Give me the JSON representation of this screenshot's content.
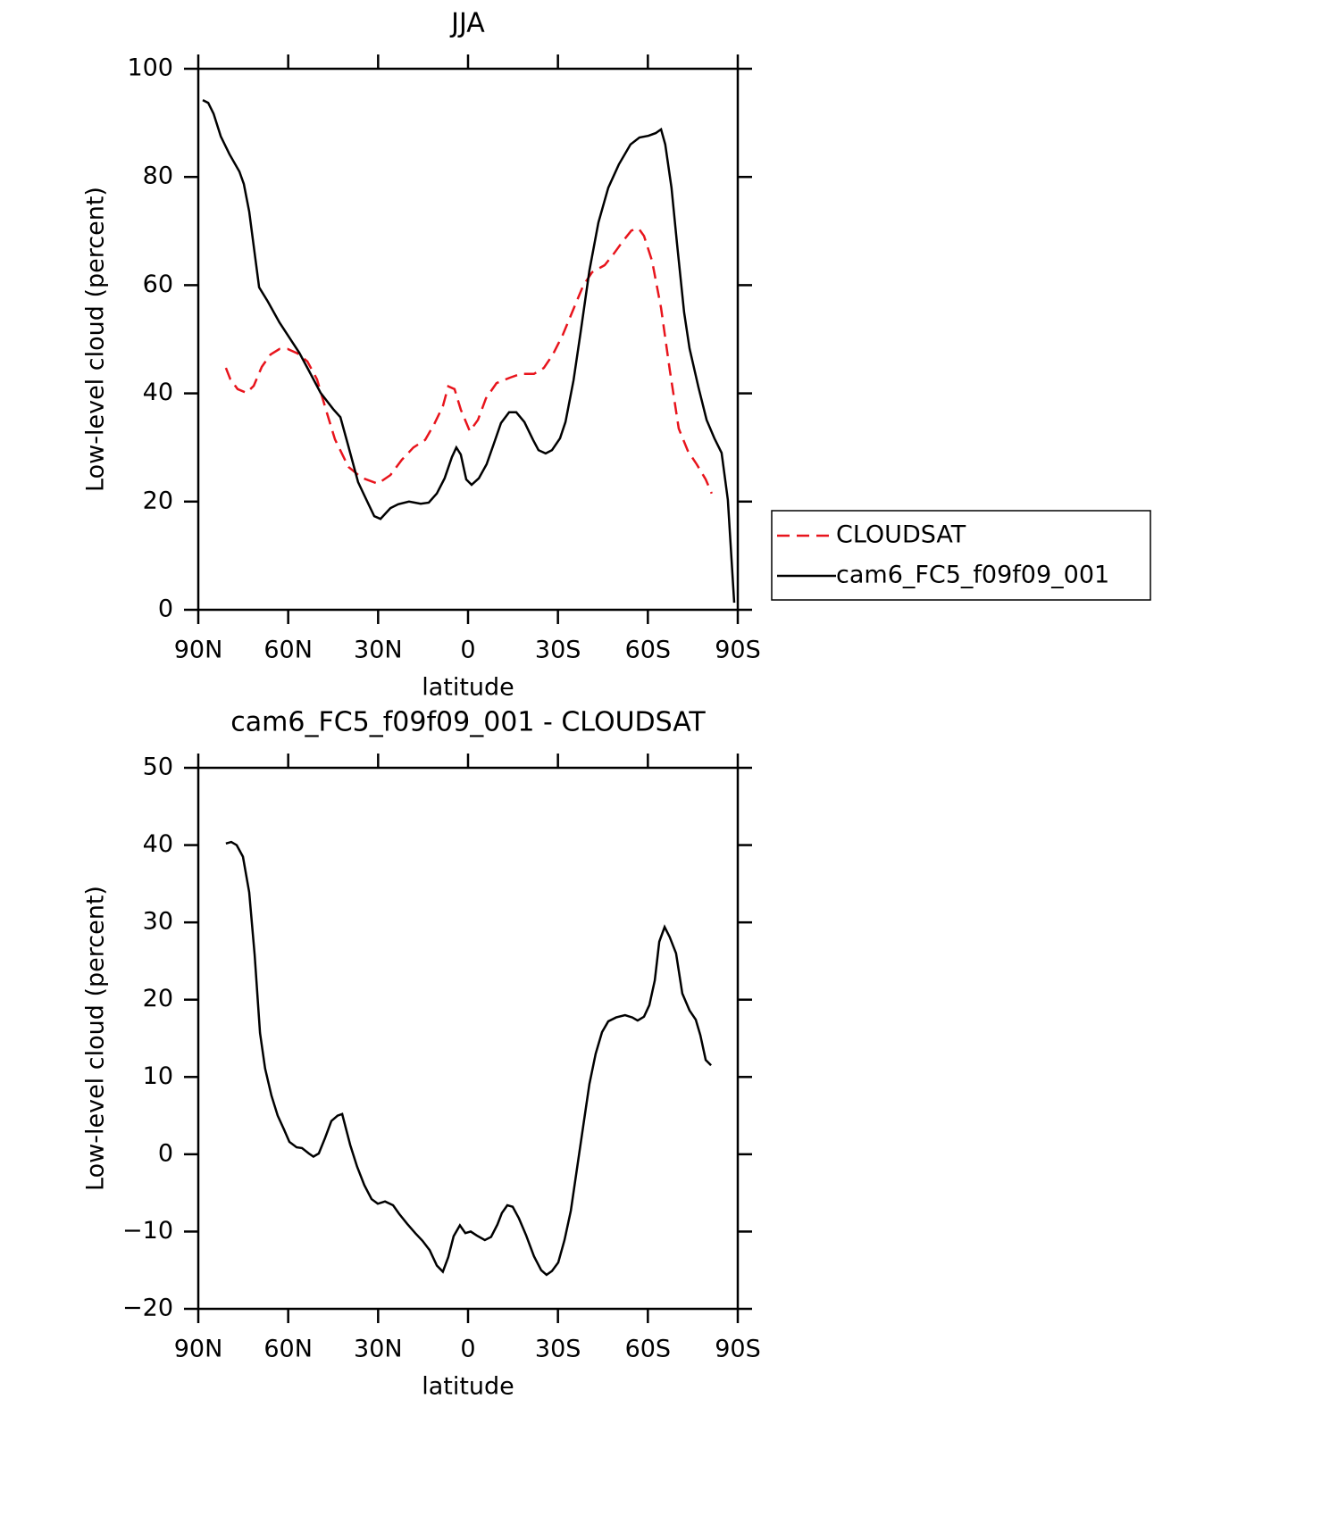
{
  "chart_data": [
    {
      "type": "line",
      "title": "JJA",
      "xlabel": "latitude",
      "ylabel": "Low-level cloud (percent)",
      "xlim": [
        90,
        -90
      ],
      "xticks": [
        {
          "value": 90,
          "label": "90N"
        },
        {
          "value": 60,
          "label": "60N"
        },
        {
          "value": 30,
          "label": "30N"
        },
        {
          "value": 0,
          "label": "0"
        },
        {
          "value": -30,
          "label": "30S"
        },
        {
          "value": -60,
          "label": "60S"
        },
        {
          "value": -90,
          "label": "90S"
        }
      ],
      "ylim": [
        0,
        100
      ],
      "yticks": [
        0,
        20,
        40,
        60,
        80,
        100
      ],
      "legend": "right",
      "series": [
        {
          "name": "CLOUDSAT",
          "color": "#e8141c",
          "line_style": "dashed",
          "x": [
            80.8,
            79.3,
            76.9,
            73.9,
            71.5,
            68.8,
            65.9,
            62.9,
            60.2,
            56.9,
            53.6,
            50.4,
            47.4,
            44.4,
            39.9,
            35.5,
            30.1,
            25.9,
            22.1,
            18.2,
            14.3,
            11.3,
            8.4,
            6.6,
            4.5,
            2.4,
            -0.6,
            -3.3,
            -6,
            -9.5,
            -14,
            -17.6,
            -22,
            -25.3,
            -28.3,
            -31.6,
            -34.6,
            -38.4,
            -41.4,
            -45.6,
            -48.6,
            -51.5,
            -54.5,
            -56.9,
            -58.7,
            -61.4,
            -64.4,
            -67.3,
            -70.3,
            -73.3,
            -76.3,
            -79.3,
            -81.3
          ],
          "values": [
            44.7,
            42.6,
            40.8,
            40.1,
            41.4,
            44.9,
            47.2,
            48.2,
            48.2,
            47.4,
            45.9,
            42.6,
            37,
            31.5,
            26.4,
            24.4,
            23.3,
            24.9,
            27.7,
            30,
            31.4,
            34.3,
            37.6,
            41.3,
            40.8,
            37,
            33,
            35.1,
            39.1,
            41.9,
            42.9,
            43.6,
            43.6,
            44.7,
            47.2,
            50.8,
            54.8,
            59.9,
            62.4,
            63.7,
            65.8,
            68,
            70.1,
            70.5,
            69.1,
            64.5,
            55.8,
            44.4,
            33.5,
            29.4,
            26.9,
            24.1,
            21.5
          ]
        },
        {
          "name": "cam6_FC5_f09f09_001",
          "color": "#000000",
          "line_style": "solid",
          "x": [
            88.5,
            86.7,
            84.9,
            82.5,
            79.6,
            76.3,
            74.8,
            73,
            69.7,
            66.8,
            62.9,
            59.6,
            56.3,
            53.1,
            49.2,
            45,
            42.6,
            39.9,
            36.7,
            34.3,
            31.3,
            29.2,
            25.9,
            23.3,
            19.7,
            15.8,
            13.1,
            10.4,
            7.8,
            5.4,
            3.9,
            2.4,
            0.6,
            -1.2,
            -3.6,
            -6.2,
            -8.6,
            -11,
            -13.7,
            -16.1,
            -18.8,
            -21.7,
            -23.5,
            -25.9,
            -28,
            -30.7,
            -32.5,
            -35.2,
            -37.5,
            -40.5,
            -43.5,
            -46.8,
            -50.3,
            -54.2,
            -57.2,
            -60.2,
            -62.6,
            -64.4,
            -65.8,
            -67.9,
            -69.7,
            -72.1,
            -73.9,
            -76.9,
            -79.6,
            -82.2,
            -84.6,
            -86.7,
            -88.8
          ],
          "values": [
            94.2,
            93.7,
            91.7,
            87.5,
            84.2,
            81,
            78.7,
            73.6,
            59.6,
            57,
            53.1,
            50.3,
            47.5,
            44.2,
            40.1,
            37.1,
            35.6,
            30.2,
            23.6,
            20.8,
            17.3,
            16.8,
            18.8,
            19.5,
            20,
            19.6,
            19.8,
            21.5,
            24.3,
            28.2,
            30,
            28.7,
            24.1,
            23.1,
            24.3,
            26.9,
            30.7,
            34.5,
            36.5,
            36.5,
            34.7,
            31.4,
            29.5,
            28.9,
            29.5,
            31.7,
            34.7,
            42.4,
            51,
            62.7,
            71.6,
            78,
            82.3,
            86,
            87.3,
            87.6,
            88.1,
            88.8,
            86,
            78,
            67.8,
            55,
            48.3,
            41.1,
            35.1,
            31.7,
            29,
            20.3,
            1.3
          ]
        }
      ]
    },
    {
      "type": "line",
      "title": "cam6_FC5_f09f09_001 - CLOUDSAT",
      "xlabel": "latitude",
      "ylabel": "Low-level cloud (percent)",
      "xlim": [
        90,
        -90
      ],
      "xticks": [
        {
          "value": 90,
          "label": "90N"
        },
        {
          "value": 60,
          "label": "60N"
        },
        {
          "value": 30,
          "label": "30N"
        },
        {
          "value": 0,
          "label": "0"
        },
        {
          "value": -30,
          "label": "30S"
        },
        {
          "value": -60,
          "label": "60S"
        },
        {
          "value": -90,
          "label": "90S"
        }
      ],
      "ylim": [
        -20,
        50
      ],
      "yticks": [
        {
          "value": -20,
          "label": "−20"
        },
        {
          "value": -10,
          "label": "−10"
        },
        0,
        10,
        20,
        30,
        40,
        50
      ],
      "series": [
        {
          "color": "#000000",
          "line_style": "solid",
          "x": [
            80.8,
            79,
            77.2,
            75.1,
            73,
            71.2,
            69.4,
            67.7,
            65.6,
            63.5,
            61.4,
            59.6,
            57.2,
            55.4,
            53.1,
            51.6,
            49.8,
            47.7,
            45.6,
            43.5,
            42,
            39.3,
            37,
            34.6,
            32.2,
            30.1,
            27.7,
            25,
            23,
            20.3,
            17.6,
            15.2,
            12.8,
            10.4,
            8.4,
            6.6,
            4.8,
            2.7,
            0.9,
            -0.9,
            -2.9,
            -5.6,
            -7.7,
            -9.8,
            -11.3,
            -13.1,
            -14.9,
            -17,
            -19.4,
            -22,
            -24.4,
            -26.2,
            -28,
            -30.1,
            -32.2,
            -34.3,
            -36.3,
            -38.4,
            -40.5,
            -42.6,
            -44.7,
            -46.8,
            -49.4,
            -52.4,
            -54.8,
            -56.6,
            -58.7,
            -60.5,
            -62.3,
            -63.8,
            -65.6,
            -67.3,
            -69.4,
            -71.5,
            -73.9,
            -76,
            -77.5,
            -79.3,
            -81.1
          ],
          "values": [
            40.2,
            40.4,
            40,
            38.5,
            33.9,
            25.8,
            15.7,
            11.1,
            7.6,
            5,
            3.2,
            1.6,
            0.9,
            0.8,
            0.1,
            -0.3,
            0.1,
            2.1,
            4.3,
            5,
            5.2,
            1.2,
            -1.6,
            -4,
            -5.8,
            -6.4,
            -6.1,
            -6.6,
            -7.7,
            -9,
            -10.2,
            -11.2,
            -12.4,
            -14.4,
            -15.2,
            -13.3,
            -10.6,
            -9.2,
            -10.2,
            -10,
            -10.5,
            -11.1,
            -10.7,
            -9.1,
            -7.6,
            -6.6,
            -6.8,
            -8.3,
            -10.5,
            -13.2,
            -15,
            -15.6,
            -15.1,
            -14,
            -11.1,
            -7.3,
            -2,
            3.6,
            9.1,
            13,
            15.8,
            17.2,
            17.7,
            18,
            17.7,
            17.3,
            17.8,
            19.3,
            22.5,
            27.5,
            29.4,
            28.1,
            26,
            20.8,
            18.6,
            17.4,
            15.4,
            12.2,
            11.5
          ]
        }
      ]
    }
  ]
}
